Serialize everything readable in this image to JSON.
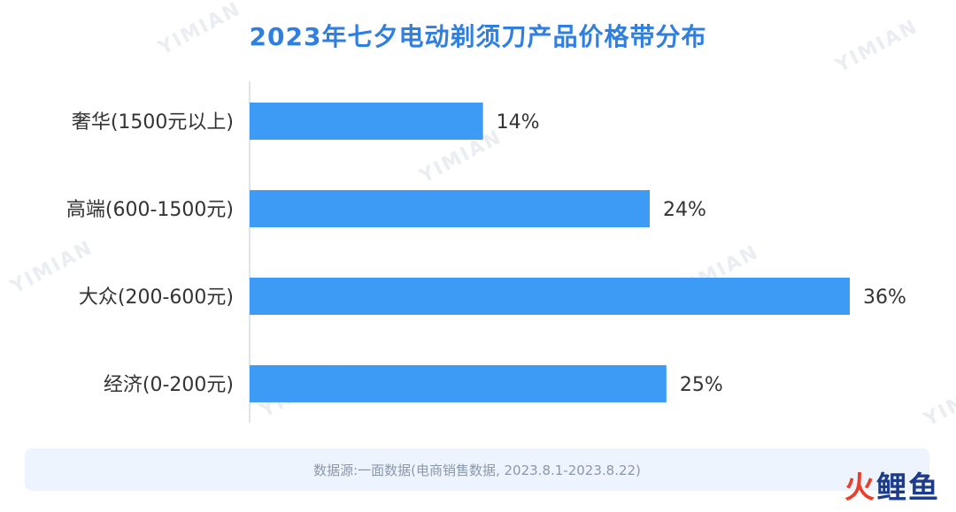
{
  "watermark": "YIMIAN",
  "footer": {
    "source": "数据源:一面数据(电商销售数据, 2023.8.1-2023.8.22)"
  },
  "logo": {
    "part1": "火",
    "part2": "鲤鱼"
  },
  "colors": {
    "bar": "#3d9bf5",
    "title": "#2f7fe0",
    "axis": "#d6dbe2",
    "label": "#333333"
  },
  "chart_data": {
    "type": "bar",
    "orientation": "horizontal",
    "title": "2023年七夕电动剃须刀产品价格带分布",
    "categories": [
      "奢华(1500元以上)",
      "高端(600-1500元)",
      "大众(200-600元)",
      "经济(0-200元)"
    ],
    "values": [
      14,
      24,
      36,
      25
    ],
    "value_labels": [
      "14%",
      "24%",
      "36%",
      "25%"
    ],
    "unit": "%",
    "xlim": [
      0,
      36
    ],
    "grid": false,
    "legend": "none"
  }
}
